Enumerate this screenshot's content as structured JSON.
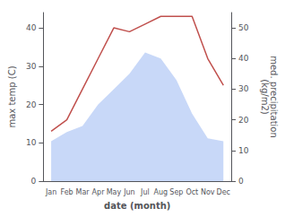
{
  "chart_data": {
    "type": "line",
    "categories": [
      "Jan",
      "Feb",
      "Mar",
      "Apr",
      "May",
      "Jun",
      "Jul",
      "Aug",
      "Sep",
      "Oct",
      "Nov",
      "Dec"
    ],
    "xlabel": "date (month)",
    "ylabel": "max temp (C)",
    "y2label": "med. precipitation\n(kg/m2)",
    "ylim": [
      0,
      44
    ],
    "yticks": [
      0,
      10,
      20,
      30,
      40
    ],
    "y2lim": [
      0,
      55
    ],
    "y2ticks": [
      0,
      10,
      20,
      30,
      40,
      50
    ],
    "grid": false,
    "series": [
      {
        "type": "area",
        "color": "#c8d8f8",
        "axis": "y2",
        "values": [
          13,
          16,
          18,
          25,
          30,
          35,
          42,
          40,
          33,
          22,
          14,
          13
        ]
      },
      {
        "type": "line",
        "color": "#c0504d",
        "values": [
          13,
          16,
          24,
          32,
          40,
          39,
          41,
          43,
          43,
          43,
          32,
          25
        ]
      }
    ]
  }
}
